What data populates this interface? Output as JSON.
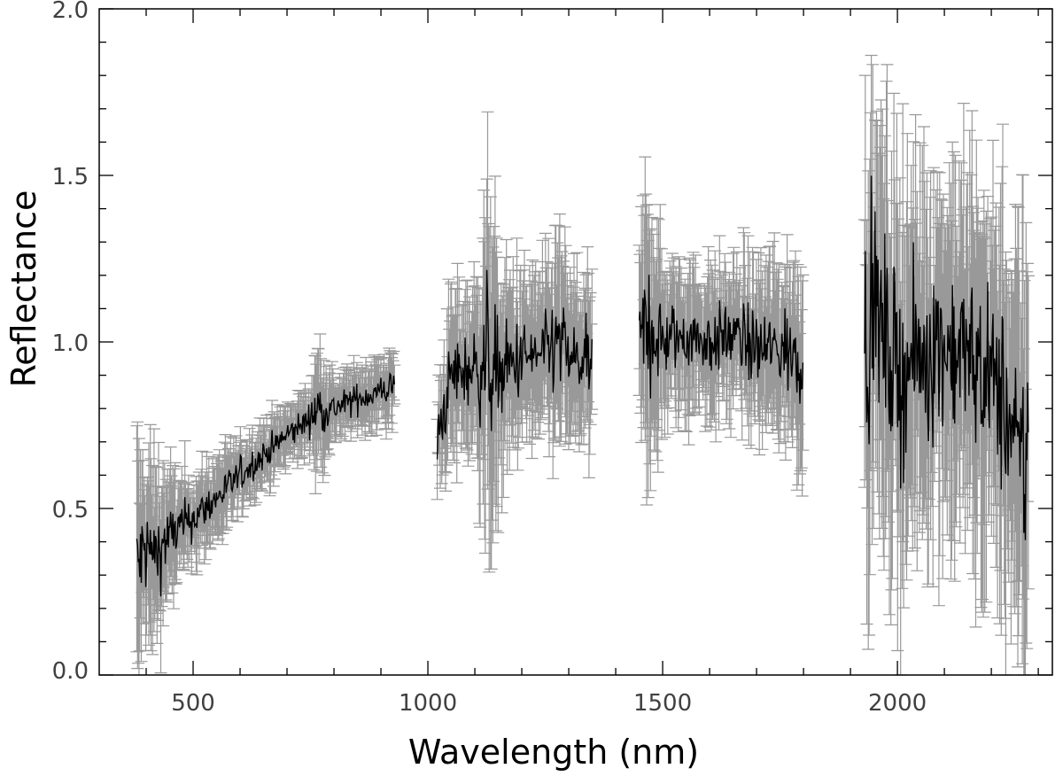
{
  "chart_data": {
    "type": "scatter",
    "xlabel": "Wavelength (nm)",
    "ylabel": "Reflectance",
    "xlim": [
      300,
      2330
    ],
    "ylim": [
      0.0,
      2.0
    ],
    "x_ticks": [
      500,
      1000,
      1500,
      2000
    ],
    "x_tick_labels": [
      "500",
      "1000",
      "1500",
      "2000"
    ],
    "y_ticks": [
      0.0,
      0.5,
      1.0,
      1.5,
      2.0
    ],
    "y_tick_labels": [
      "0.0",
      "0.5",
      "1.0",
      "1.5",
      "2.0"
    ],
    "grid": false,
    "colors": {
      "data": "#000000",
      "error_bars": "#999999",
      "axes": "#000000"
    },
    "segments": [
      {
        "x": [
          380,
          400,
          420,
          450,
          500,
          550,
          600,
          650,
          700,
          750,
          760,
          800,
          850,
          900,
          930
        ],
        "y": [
          0.32,
          0.38,
          0.36,
          0.42,
          0.47,
          0.53,
          0.6,
          0.66,
          0.72,
          0.77,
          0.8,
          0.8,
          0.83,
          0.85,
          0.87
        ],
        "err": [
          0.28,
          0.22,
          0.2,
          0.14,
          0.1,
          0.09,
          0.08,
          0.07,
          0.07,
          0.07,
          0.15,
          0.07,
          0.07,
          0.08,
          0.08
        ]
      },
      {
        "x": [
          1020,
          1050,
          1100,
          1130,
          1150,
          1200,
          1250,
          1280,
          1300,
          1350
        ],
        "y": [
          0.7,
          0.9,
          0.92,
          0.95,
          0.9,
          0.95,
          0.96,
          1.0,
          0.95,
          0.93
        ],
        "err": [
          0.12,
          0.18,
          0.18,
          0.4,
          0.25,
          0.18,
          0.18,
          0.25,
          0.18,
          0.18
        ]
      },
      {
        "x": [
          1450,
          1470,
          1500,
          1550,
          1600,
          1650,
          1700,
          1750,
          1800
        ],
        "y": [
          1.0,
          1.05,
          1.0,
          1.02,
          1.0,
          1.02,
          0.98,
          0.98,
          0.95
        ],
        "err": [
          0.2,
          0.35,
          0.18,
          0.16,
          0.16,
          0.16,
          0.18,
          0.2,
          0.22
        ]
      },
      {
        "x": [
          1930,
          1950,
          2000,
          2050,
          2100,
          2150,
          2200,
          2230,
          2260,
          2280
        ],
        "y": [
          1.0,
          1.1,
          0.9,
          0.95,
          1.0,
          0.95,
          0.9,
          0.8,
          0.6,
          0.7
        ],
        "err": [
          0.5,
          0.45,
          0.45,
          0.4,
          0.4,
          0.4,
          0.4,
          0.45,
          0.5,
          0.5
        ]
      }
    ]
  }
}
